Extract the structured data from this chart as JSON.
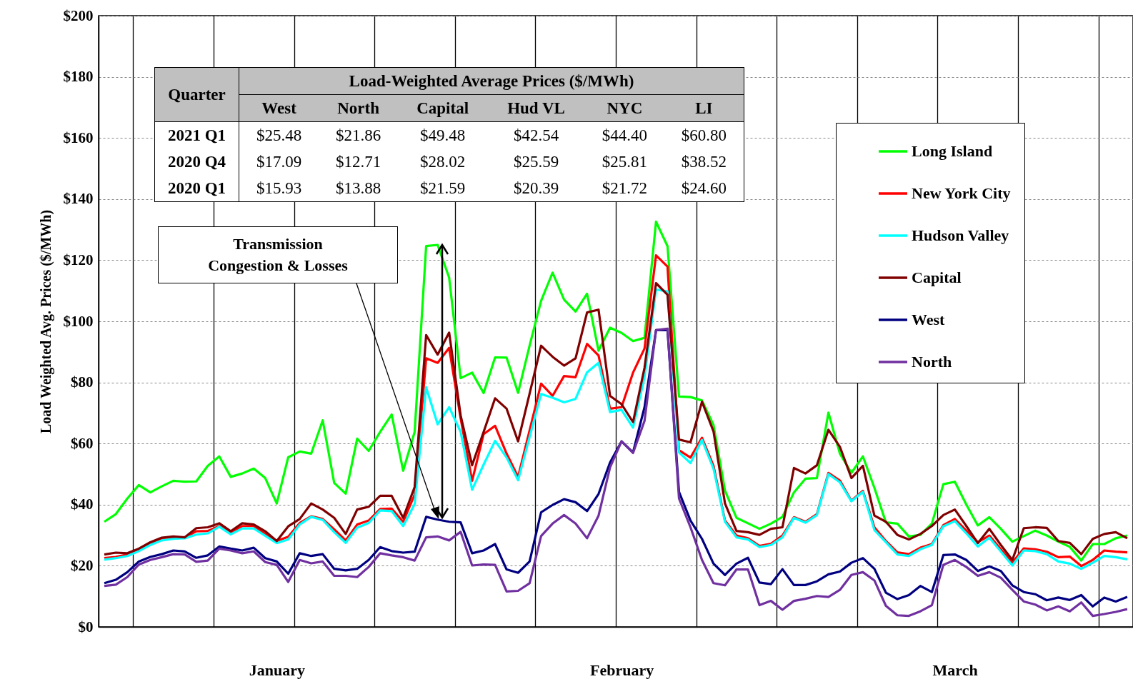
{
  "chart_data": {
    "type": "line",
    "ylabel": "Load Weighted Avg. Prices  ($/MWh)",
    "x": [
      "2021-01-01",
      "2021-01-02",
      "2021-01-03",
      "2021-01-04",
      "2021-01-05",
      "2021-01-06",
      "2021-01-07",
      "2021-01-08",
      "2021-01-09",
      "2021-01-10",
      "2021-01-11",
      "2021-01-12",
      "2021-01-13",
      "2021-01-14",
      "2021-01-15",
      "2021-01-16",
      "2021-01-17",
      "2021-01-18",
      "2021-01-19",
      "2021-01-20",
      "2021-01-21",
      "2021-01-22",
      "2021-01-23",
      "2021-01-24",
      "2021-01-25",
      "2021-01-26",
      "2021-01-27",
      "2021-01-28",
      "2021-01-29",
      "2021-01-30",
      "2021-01-31",
      "2021-02-01",
      "2021-02-02",
      "2021-02-03",
      "2021-02-04",
      "2021-02-05",
      "2021-02-06",
      "2021-02-07",
      "2021-02-08",
      "2021-02-09",
      "2021-02-10",
      "2021-02-11",
      "2021-02-12",
      "2021-02-13",
      "2021-02-14",
      "2021-02-15",
      "2021-02-16",
      "2021-02-17",
      "2021-02-18",
      "2021-02-19",
      "2021-02-20",
      "2021-02-21",
      "2021-02-22",
      "2021-02-23",
      "2021-02-24",
      "2021-02-25",
      "2021-02-26",
      "2021-02-27",
      "2021-02-28",
      "2021-03-01",
      "2021-03-02",
      "2021-03-03",
      "2021-03-04",
      "2021-03-05",
      "2021-03-06",
      "2021-03-07",
      "2021-03-08",
      "2021-03-09",
      "2021-03-10",
      "2021-03-11",
      "2021-03-12",
      "2021-03-13",
      "2021-03-14",
      "2021-03-15",
      "2021-03-16",
      "2021-03-17",
      "2021-03-18",
      "2021-03-19",
      "2021-03-20",
      "2021-03-21",
      "2021-03-22",
      "2021-03-23",
      "2021-03-24",
      "2021-03-25",
      "2021-03-26",
      "2021-03-27",
      "2021-03-28",
      "2021-03-29",
      "2021-03-30",
      "2021-03-31"
    ],
    "xlim": [
      "2020-12-31T12:00",
      "2021-03-31T12:00"
    ],
    "xticks": [
      {
        "value": "2021-01-03T12:00",
        "label": null
      },
      {
        "value": "2021-01-10T12:00",
        "label": null
      },
      {
        "value": "2021-01-17T12:00",
        "label": null
      },
      {
        "value": "2021-01-24T12:00",
        "label": null
      },
      {
        "value": "2021-01-31T12:00",
        "label": null
      },
      {
        "value": "2021-02-07T12:00",
        "label": null
      },
      {
        "value": "2021-02-14T12:00",
        "label": null
      },
      {
        "value": "2021-02-21T12:00",
        "label": null
      },
      {
        "value": "2021-02-28T12:00",
        "label": null
      },
      {
        "value": "2021-03-07T12:00",
        "label": null
      },
      {
        "value": "2021-03-14T12:00",
        "label": null
      },
      {
        "value": "2021-03-21T12:00",
        "label": null
      },
      {
        "value": "2021-03-28T12:00",
        "label": null
      },
      {
        "value": "2021-01-16",
        "label": "January"
      },
      {
        "value": "2021-02-15",
        "label": "February"
      },
      {
        "value": "2021-03-16",
        "label": "March"
      }
    ],
    "ylim": [
      0,
      200
    ],
    "yticks": [
      {
        "value": 0,
        "label": "$0"
      },
      {
        "value": 20,
        "label": "$20"
      },
      {
        "value": 40,
        "label": "$40"
      },
      {
        "value": 60,
        "label": "$60"
      },
      {
        "value": 80,
        "label": "$80"
      },
      {
        "value": 100,
        "label": "$100"
      },
      {
        "value": 120,
        "label": "$120"
      },
      {
        "value": 140,
        "label": "$140"
      },
      {
        "value": 160,
        "label": "$160"
      },
      {
        "value": 180,
        "label": "$180"
      },
      {
        "value": 200,
        "label": "$200"
      }
    ],
    "grid": true,
    "legend": "top right",
    "series": [
      {
        "name": "Long Island",
        "color": "#00ff00",
        "values": [
          34.4,
          36.9,
          42.0,
          46.4,
          44.0,
          46.0,
          47.8,
          47.5,
          47.6,
          52.7,
          55.8,
          49.1,
          50.2,
          51.8,
          48.7,
          40.4,
          55.5,
          57.4,
          56.7,
          67.6,
          47.1,
          43.6,
          61.6,
          57.6,
          63.8,
          69.5,
          51.1,
          63.8,
          124.6,
          125.0,
          114.3,
          81.4,
          83.2,
          76.5,
          88.2,
          88.1,
          76.6,
          92.0,
          106.7,
          115.9,
          107.1,
          103.2,
          109.0,
          90.4,
          97.9,
          96.2,
          93.5,
          94.6,
          132.6,
          124.6,
          75.4,
          75.2,
          74.1,
          66.1,
          44.6,
          35.7,
          33.9,
          32.1,
          33.8,
          36.0,
          44.0,
          48.5,
          48.7,
          70.1,
          56.7,
          50.4,
          55.8,
          45.5,
          34.2,
          33.8,
          29.6,
          30.1,
          33.8,
          46.7,
          47.5,
          40.0,
          33.2,
          35.9,
          32.1,
          27.9,
          29.7,
          31.5,
          29.9,
          27.9,
          26.2,
          21.7,
          27.1,
          27.1,
          29.0,
          29.9
        ]
      },
      {
        "name": "New York City",
        "color": "#ff0000",
        "values": [
          22.5,
          22.9,
          23.7,
          25.0,
          27.0,
          28.6,
          29.0,
          29.2,
          31.3,
          31.4,
          33.0,
          30.8,
          33.0,
          33.0,
          30.4,
          28.1,
          29.5,
          34.0,
          36.2,
          35.3,
          31.9,
          28.3,
          33.5,
          34.8,
          38.6,
          38.7,
          34.4,
          43.3,
          87.9,
          86.4,
          91.3,
          68.3,
          47.8,
          63.1,
          65.8,
          56.7,
          49.1,
          64.3,
          79.6,
          75.6,
          82.1,
          81.7,
          92.6,
          88.8,
          71.4,
          71.9,
          83.2,
          91.1,
          121.6,
          117.9,
          57.8,
          55.4,
          61.9,
          52.7,
          34.8,
          29.9,
          29.0,
          26.5,
          27.2,
          29.9,
          35.9,
          34.4,
          36.9,
          50.4,
          47.9,
          41.3,
          44.5,
          32.6,
          28.1,
          24.4,
          23.8,
          25.9,
          27.1,
          33.3,
          35.3,
          31.5,
          27.7,
          29.9,
          25.4,
          21.0,
          25.7,
          25.4,
          24.6,
          22.8,
          23.0,
          19.9,
          21.9,
          25.0,
          24.6,
          24.4
        ]
      },
      {
        "name": "Hudson Valley",
        "color": "#00ffff",
        "values": [
          22.0,
          22.5,
          23.2,
          24.8,
          26.8,
          28.3,
          28.8,
          29.0,
          30.2,
          30.6,
          32.8,
          30.3,
          32.2,
          32.2,
          29.8,
          27.4,
          28.6,
          33.5,
          36.0,
          35.0,
          31.0,
          27.5,
          32.5,
          34.0,
          38.1,
          37.9,
          33.0,
          40.2,
          78.4,
          66.3,
          71.9,
          63.8,
          44.9,
          53.1,
          60.9,
          55.4,
          48.0,
          62.1,
          76.2,
          75.0,
          73.5,
          74.6,
          83.3,
          86.4,
          70.3,
          71.0,
          65.2,
          81.7,
          110.4,
          109.8,
          57.1,
          53.6,
          61.2,
          51.8,
          34.4,
          29.3,
          28.6,
          26.1,
          26.8,
          29.3,
          35.7,
          34.1,
          36.6,
          50.0,
          47.3,
          41.1,
          44.2,
          31.7,
          27.7,
          23.7,
          23.2,
          25.4,
          26.8,
          32.9,
          34.6,
          30.6,
          26.3,
          29.2,
          24.7,
          20.1,
          25.0,
          24.8,
          23.8,
          21.4,
          20.7,
          19.0,
          21.0,
          23.2,
          22.8,
          22.1
        ]
      },
      {
        "name": "Capital",
        "color": "#800000",
        "values": [
          23.7,
          24.3,
          24.1,
          25.6,
          27.7,
          29.2,
          29.6,
          29.3,
          32.3,
          32.6,
          33.9,
          31.3,
          33.9,
          33.5,
          31.3,
          28.1,
          32.9,
          35.3,
          40.4,
          38.4,
          35.7,
          30.4,
          38.4,
          39.3,
          42.9,
          42.9,
          35.7,
          45.8,
          95.5,
          89.1,
          96.3,
          69.2,
          52.9,
          63.8,
          74.8,
          71.4,
          60.7,
          76.3,
          92.0,
          88.4,
          85.5,
          87.9,
          102.9,
          103.8,
          75.6,
          72.9,
          67.0,
          84.8,
          112.5,
          108.7,
          61.3,
          60.4,
          73.7,
          64.0,
          40.4,
          31.4,
          31.0,
          30.1,
          32.1,
          32.6,
          52.0,
          50.2,
          52.9,
          64.5,
          58.9,
          48.7,
          52.7,
          36.4,
          34.4,
          30.1,
          28.6,
          30.4,
          33.0,
          36.6,
          38.4,
          33.0,
          27.4,
          32.1,
          26.8,
          21.9,
          32.3,
          32.6,
          32.4,
          28.1,
          27.5,
          23.8,
          28.8,
          30.4,
          31.0,
          29.0
        ]
      },
      {
        "name": "West",
        "color": "#000080",
        "values": [
          14.3,
          15.4,
          17.9,
          21.4,
          22.9,
          23.8,
          25.0,
          24.7,
          22.6,
          23.4,
          26.3,
          25.6,
          25.0,
          25.9,
          22.5,
          21.4,
          17.4,
          24.1,
          23.2,
          23.8,
          19.0,
          18.5,
          19.0,
          21.9,
          26.1,
          24.8,
          24.3,
          24.6,
          36.0,
          35.1,
          34.4,
          34.2,
          24.1,
          25.0,
          27.1,
          18.8,
          17.7,
          21.4,
          37.5,
          39.9,
          41.8,
          40.8,
          37.9,
          43.5,
          53.8,
          60.7,
          57.1,
          71.9,
          97.1,
          97.1,
          44.2,
          34.8,
          28.8,
          20.7,
          17.0,
          20.7,
          22.6,
          14.5,
          14.0,
          18.9,
          13.7,
          13.7,
          14.9,
          17.2,
          18.1,
          21.0,
          22.5,
          19.0,
          11.2,
          9.1,
          10.4,
          13.4,
          11.4,
          23.5,
          23.7,
          21.9,
          18.3,
          19.8,
          18.3,
          13.6,
          11.4,
          10.7,
          8.7,
          9.6,
          8.8,
          10.4,
          6.7,
          9.6,
          8.3,
          9.8
        ]
      },
      {
        "name": "North",
        "color": "#7030a0",
        "values": [
          13.4,
          13.8,
          16.3,
          20.4,
          21.9,
          22.8,
          23.8,
          23.7,
          21.3,
          21.7,
          25.6,
          25.0,
          24.1,
          24.7,
          21.2,
          20.3,
          14.7,
          21.9,
          20.8,
          21.4,
          16.7,
          16.7,
          16.3,
          19.6,
          24.1,
          23.4,
          22.8,
          21.7,
          29.3,
          29.6,
          28.3,
          31.1,
          20.1,
          20.4,
          20.3,
          11.6,
          11.8,
          14.3,
          29.7,
          33.8,
          36.6,
          33.8,
          29.0,
          36.4,
          52.2,
          60.7,
          56.9,
          67.4,
          97.1,
          97.6,
          42.0,
          32.6,
          21.9,
          14.3,
          13.6,
          18.8,
          18.8,
          7.1,
          8.5,
          5.6,
          8.5,
          9.2,
          10.1,
          9.8,
          12.1,
          17.0,
          17.9,
          15.2,
          6.9,
          3.8,
          3.6,
          5.1,
          7.1,
          20.3,
          21.9,
          19.6,
          16.7,
          17.9,
          16.1,
          12.1,
          8.3,
          7.3,
          5.4,
          6.7,
          5.1,
          8.0,
          3.6,
          4.2,
          4.9,
          5.8
        ]
      }
    ],
    "annotations": [
      "Quarter",
      "Load-Weighted Average Prices ($/MWh)",
      "West",
      "North",
      "Capital",
      "Hud VL",
      "NYC",
      "LI",
      "2021 Q1",
      "$25.48",
      "$21.86",
      "$49.48",
      "$42.54",
      "$44.40",
      "$60.80",
      "2020 Q4",
      "$17.09",
      "$12.71",
      "$28.02",
      "$25.59",
      "$25.81",
      "$38.52",
      "2020 Q1",
      "$15.93",
      "$13.88",
      "$21.59",
      "$20.39",
      "$21.72",
      "$24.60",
      "Transmission\nCongestion & Losses"
    ]
  }
}
